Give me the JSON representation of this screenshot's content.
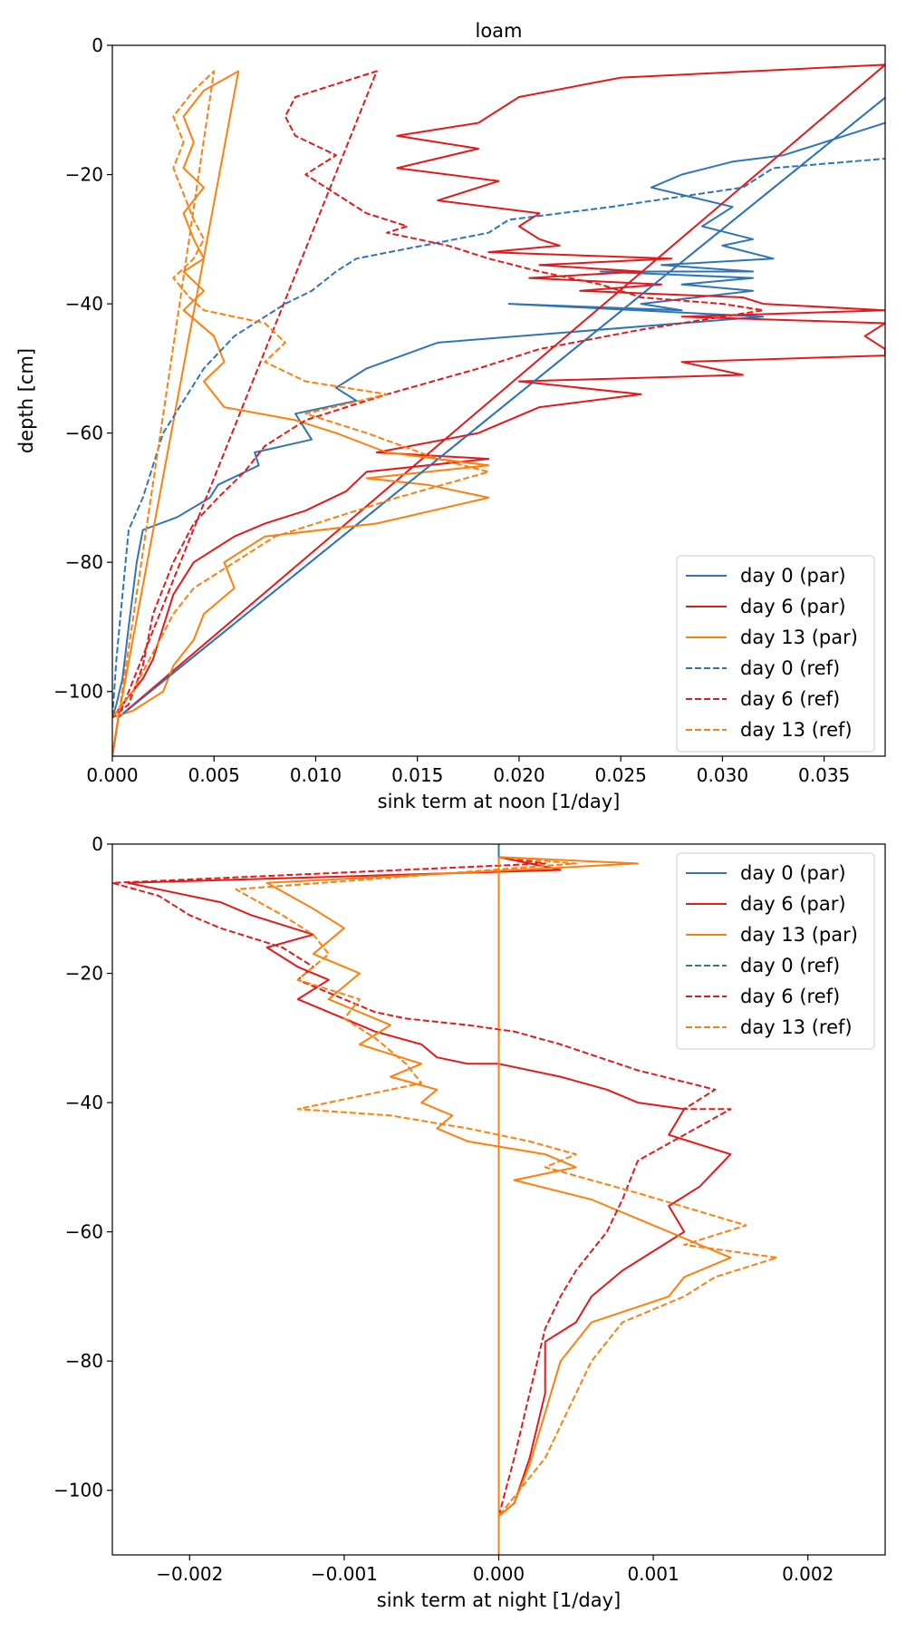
{
  "chart_data": [
    {
      "type": "line",
      "title": "loam",
      "xlabel": "sink term at noon [1/day]",
      "ylabel": "depth [cm]",
      "xlim": [
        0,
        0.038
      ],
      "ylim": [
        -110,
        0
      ],
      "xticks": [
        0,
        0.005,
        0.01,
        0.015,
        0.02,
        0.025,
        0.03,
        0.035
      ],
      "xtick_labels": [
        "0.000",
        "0.005",
        "0.010",
        "0.015",
        "0.020",
        "0.025",
        "0.030",
        "0.035"
      ],
      "yticks": [
        0,
        -20,
        -40,
        -60,
        -80,
        -100
      ],
      "ytick_labels": [
        "0",
        "−20",
        "−40",
        "−60",
        "−80",
        "−100"
      ],
      "legend_position": "lower-right",
      "grid": false,
      "series": [
        {
          "name": "day 0 (par)",
          "color": "#2f75b5",
          "dash": "solid",
          "x": [
            0,
            0.0003,
            0.04,
            0.04,
            0.037,
            0.033,
            0.0305,
            0.028,
            0.0265,
            0.0305,
            0.029,
            0.0315,
            0.03,
            0.0325,
            0.027,
            0.0315,
            0.024,
            0.0315,
            0.028,
            0.0315,
            0.026,
            0.028,
            0.0195,
            0.032,
            0.016,
            0.0125,
            0.011,
            0.012,
            0.009,
            0.0098,
            0.007,
            0.0072,
            0.0052,
            0.0048,
            0.0032,
            0.0015,
            0.0012,
            0.0008,
            0.0005,
            0.0002,
            0
          ],
          "y": [
            -110,
            -104,
            -3,
            -10,
            -13,
            -17,
            -18,
            -20,
            -22,
            -25,
            -28,
            -30,
            -31,
            -33,
            -34,
            -35,
            -35,
            -36,
            -37,
            -38,
            -40,
            -41,
            -40,
            -42,
            -46,
            -50,
            -53,
            -55,
            -57,
            -61,
            -63,
            -65,
            -68,
            -70,
            -73,
            -75,
            -80,
            -90,
            -98,
            -102,
            -104
          ]
        },
        {
          "name": "day 6 (par)",
          "color": "#e31a1c",
          "dash": "solid",
          "x": [
            0,
            0.0003,
            0.038,
            0.025,
            0.02,
            0.018,
            0.014,
            0.018,
            0.014,
            0.019,
            0.016,
            0.021,
            0.02,
            0.021,
            0.022,
            0.0185,
            0.0275,
            0.021,
            0.026,
            0.0205,
            0.027,
            0.023,
            0.031,
            0.032,
            0.038,
            0.028,
            0.038,
            0.037,
            0.038,
            0.038,
            0.028,
            0.031,
            0.02,
            0.026,
            0.021,
            0.018,
            0.013,
            0.0185,
            0.0125,
            0.0115,
            0.0095,
            0.0075,
            0.006,
            0.004,
            0.003,
            0.0025,
            0.002,
            0.0015,
            0.0005,
            0
          ],
          "y": [
            -110,
            -104,
            -3,
            -5,
            -8,
            -12,
            -14,
            -16,
            -19,
            -21,
            -24,
            -26,
            -28,
            -30,
            -31,
            -32,
            -33,
            -34,
            -35,
            -36,
            -37,
            -38,
            -39,
            -40,
            -41,
            -42,
            -43,
            -45,
            -47,
            -48,
            -49,
            -51,
            -52,
            -54,
            -56,
            -60,
            -63,
            -64,
            -66,
            -69,
            -72,
            -74,
            -76,
            -80,
            -85,
            -90,
            -95,
            -98,
            -102,
            -104
          ]
        },
        {
          "name": "day 13 (par)",
          "color": "#ff7f0e",
          "dash": "solid",
          "x": [
            0,
            0.0003,
            0.0062,
            0.0045,
            0.0035,
            0.004,
            0.0035,
            0.0045,
            0.0035,
            0.004,
            0.0045,
            0.0035,
            0.0045,
            0.0035,
            0.005,
            0.0055,
            0.0045,
            0.0055,
            0.009,
            0.011,
            0.0135,
            0.0185,
            0.0125,
            0.0155,
            0.0185,
            0.013,
            0.0075,
            0.0065,
            0.0055,
            0.006,
            0.0045,
            0.004,
            0.003,
            0.0025,
            0.001,
            0
          ],
          "y": [
            -110,
            -104,
            -4,
            -7,
            -11,
            -15,
            -19,
            -22,
            -26,
            -30,
            -33,
            -35,
            -38,
            -41,
            -45,
            -49,
            -52,
            -56,
            -58,
            -60,
            -63,
            -65,
            -67,
            -68,
            -70,
            -74,
            -76,
            -78,
            -80,
            -84,
            -88,
            -92,
            -96,
            -100,
            -103,
            -104
          ]
        },
        {
          "name": "day 0 (ref)",
          "color": "#2f75b5",
          "dash": "dashed",
          "x": [
            0,
            0.0003,
            0.04,
            0.04,
            0.0325,
            0.031,
            0.0245,
            0.0195,
            0.0185,
            0.012,
            0.011,
            0.0098,
            0.0085,
            0.0075,
            0.006,
            0.0045,
            0.0035,
            0.0025,
            0.002,
            0.0015,
            0.0008,
            0.0005,
            0.0002,
            0
          ],
          "y": [
            -110,
            -104,
            -3,
            -17,
            -19,
            -22,
            -25,
            -27,
            -29,
            -33,
            -35,
            -38,
            -40,
            -42,
            -45,
            -50,
            -55,
            -60,
            -65,
            -70,
            -75,
            -85,
            -95,
            -104
          ]
        },
        {
          "name": "day 6 (ref)",
          "color": "#e31a1c",
          "dash": "dashed",
          "x": [
            0,
            0.0003,
            0.013,
            0.009,
            0.0085,
            0.009,
            0.011,
            0.0095,
            0.011,
            0.0125,
            0.0145,
            0.0135,
            0.0165,
            0.0185,
            0.021,
            0.024,
            0.026,
            0.03,
            0.032,
            0.026,
            0.021,
            0.018,
            0.0135,
            0.0095,
            0.0075,
            0.0065,
            0.0052,
            0.004,
            0.003,
            0.002,
            0.0015,
            0.0008,
            0
          ],
          "y": [
            -110,
            -104,
            -4,
            -8,
            -11,
            -14,
            -17,
            -20,
            -23,
            -26,
            -28,
            -29,
            -31,
            -33,
            -35,
            -37,
            -39,
            -40,
            -41,
            -44,
            -47,
            -50,
            -54,
            -58,
            -62,
            -66,
            -70,
            -74,
            -80,
            -88,
            -96,
            -102,
            -104
          ]
        },
        {
          "name": "day 13 (ref)",
          "color": "#ff7f0e",
          "dash": "dashed",
          "x": [
            0,
            0.0003,
            0.005,
            0.004,
            0.003,
            0.0035,
            0.003,
            0.0035,
            0.004,
            0.0045,
            0.004,
            0.003,
            0.0038,
            0.0045,
            0.0075,
            0.0085,
            0.0075,
            0.0095,
            0.0135,
            0.0095,
            0.0125,
            0.016,
            0.0185,
            0.014,
            0.008,
            0.0065,
            0.0055,
            0.004,
            0.003,
            0.002,
            0.001,
            0
          ],
          "y": [
            -110,
            -104,
            -4,
            -7,
            -11,
            -15,
            -19,
            -23,
            -27,
            -30,
            -33,
            -36,
            -39,
            -41,
            -43,
            -46,
            -49,
            -52,
            -54,
            -57,
            -60,
            -64,
            -66,
            -70,
            -76,
            -79,
            -81,
            -84,
            -88,
            -94,
            -100,
            -104
          ]
        }
      ]
    },
    {
      "type": "line",
      "title": "",
      "xlabel": "sink term at night [1/day]",
      "ylabel": "",
      "xlim": [
        -0.0025,
        0.0025
      ],
      "ylim": [
        -110,
        0
      ],
      "xticks": [
        -0.002,
        -0.001,
        0,
        0.001,
        0.002
      ],
      "xtick_labels": [
        "−0.002",
        "−0.001",
        "0.000",
        "0.001",
        "0.002"
      ],
      "yticks": [
        0,
        -20,
        -40,
        -60,
        -80,
        -100
      ],
      "ytick_labels": [
        "0",
        "−20",
        "−40",
        "−60",
        "−80",
        "−100"
      ],
      "legend_position": "top-right",
      "grid": false,
      "series": [
        {
          "name": "day 0 (par)",
          "color": "#2f75b5",
          "dash": "solid",
          "x": [
            0,
            0
          ],
          "y": [
            -110,
            0
          ]
        },
        {
          "name": "day 6 (par)",
          "color": "#e31a1c",
          "dash": "solid",
          "x": [
            0,
            0,
            0.0002,
            0.0004,
            -0.0024,
            -0.0018,
            -0.0016,
            -0.0012,
            -0.0015,
            -0.0013,
            -0.0011,
            -0.0013,
            -0.001,
            -0.0008,
            -0.0005,
            -0.0004,
            -0.0002,
            0,
            0.0004,
            0.0007,
            0.0009,
            0.0012,
            0.0011,
            0.0015,
            0.0013,
            0.0011,
            0.0012,
            0.0008,
            0.0006,
            0.0005,
            0.0003,
            0.0003,
            0.0002,
            0.0001,
            0
          ],
          "y": [
            -110,
            -2,
            -3,
            -4,
            -6,
            -9,
            -11,
            -14,
            -16,
            -19,
            -21,
            -24,
            -27,
            -29,
            -31,
            -33,
            -34,
            -34,
            -36,
            -38,
            -40,
            -41,
            -45,
            -48,
            -53,
            -56,
            -60,
            -66,
            -70,
            -74,
            -77,
            -85,
            -95,
            -102,
            -104
          ]
        },
        {
          "name": "day 13 (par)",
          "color": "#ff7f0e",
          "dash": "solid",
          "x": [
            0,
            0,
            0.0009,
            -0.0015,
            -0.0012,
            -0.001,
            -0.0012,
            -0.0009,
            -0.0011,
            -0.0007,
            -0.0009,
            -0.0005,
            -0.0007,
            -0.0004,
            -0.0005,
            -0.0003,
            -0.0004,
            -0.0002,
            0.0003,
            0.0005,
            0.0001,
            0.0006,
            0.0011,
            0.0015,
            0.0012,
            0.0011,
            0.0006,
            0.0004,
            0.0003,
            0.0002,
            0.0001,
            0
          ],
          "y": [
            -110,
            -2,
            -3,
            -6,
            -10,
            -13,
            -17,
            -20,
            -24,
            -28,
            -31,
            -34,
            -36,
            -38,
            -40,
            -42,
            -44,
            -46,
            -48,
            -50,
            -52,
            -55,
            -60,
            -64,
            -67,
            -70,
            -74,
            -80,
            -88,
            -96,
            -102,
            -104
          ]
        },
        {
          "name": "day 0 (ref)",
          "color": "#2f75b5",
          "dash": "dashed",
          "x": [
            0,
            0
          ],
          "y": [
            -110,
            0
          ]
        },
        {
          "name": "day 6 (ref)",
          "color": "#e31a1c",
          "dash": "dashed",
          "x": [
            0,
            0,
            0.0003,
            -0.0025,
            -0.0022,
            -0.002,
            -0.0018,
            -0.0014,
            -0.0012,
            -0.0013,
            -0.001,
            -0.0008,
            -0.0006,
            -0.0002,
            0.0001,
            0.0004,
            0.0009,
            0.0014,
            0.0012,
            0.0015,
            0.0012,
            0.0009,
            0.0008,
            0.0007,
            0.0005,
            0.0004,
            0.0003,
            0.0002,
            0.0001,
            0
          ],
          "y": [
            -110,
            -2,
            -3,
            -6,
            -8,
            -11,
            -13,
            -16,
            -19,
            -21,
            -24,
            -26,
            -27,
            -28,
            -29,
            -31,
            -35,
            -38,
            -41,
            -41,
            -45,
            -49,
            -55,
            -60,
            -66,
            -70,
            -75,
            -85,
            -95,
            -104
          ]
        },
        {
          "name": "day 13 (ref)",
          "color": "#ff7f0e",
          "dash": "dashed",
          "x": [
            0,
            0,
            0.0005,
            -0.0017,
            -0.0014,
            -0.0012,
            -0.0011,
            -0.0013,
            -0.0009,
            -0.001,
            -0.0008,
            -0.0006,
            -0.0005,
            -0.0013,
            -0.0007,
            -0.0002,
            0.0002,
            0.0005,
            0.0003,
            0.0009,
            0.0016,
            0.0012,
            0.0018,
            0.0014,
            0.0012,
            0.0008,
            0.0006,
            0.0005,
            0.0004,
            0.0003,
            0.0001,
            0
          ],
          "y": [
            -110,
            -2,
            -3,
            -7,
            -11,
            -14,
            -17,
            -21,
            -24,
            -27,
            -30,
            -34,
            -37,
            -41,
            -42,
            -44,
            -46,
            -48,
            -50,
            -54,
            -59,
            -62,
            -64,
            -67,
            -70,
            -74,
            -80,
            -85,
            -90,
            -95,
            -101,
            -104
          ]
        }
      ]
    }
  ]
}
